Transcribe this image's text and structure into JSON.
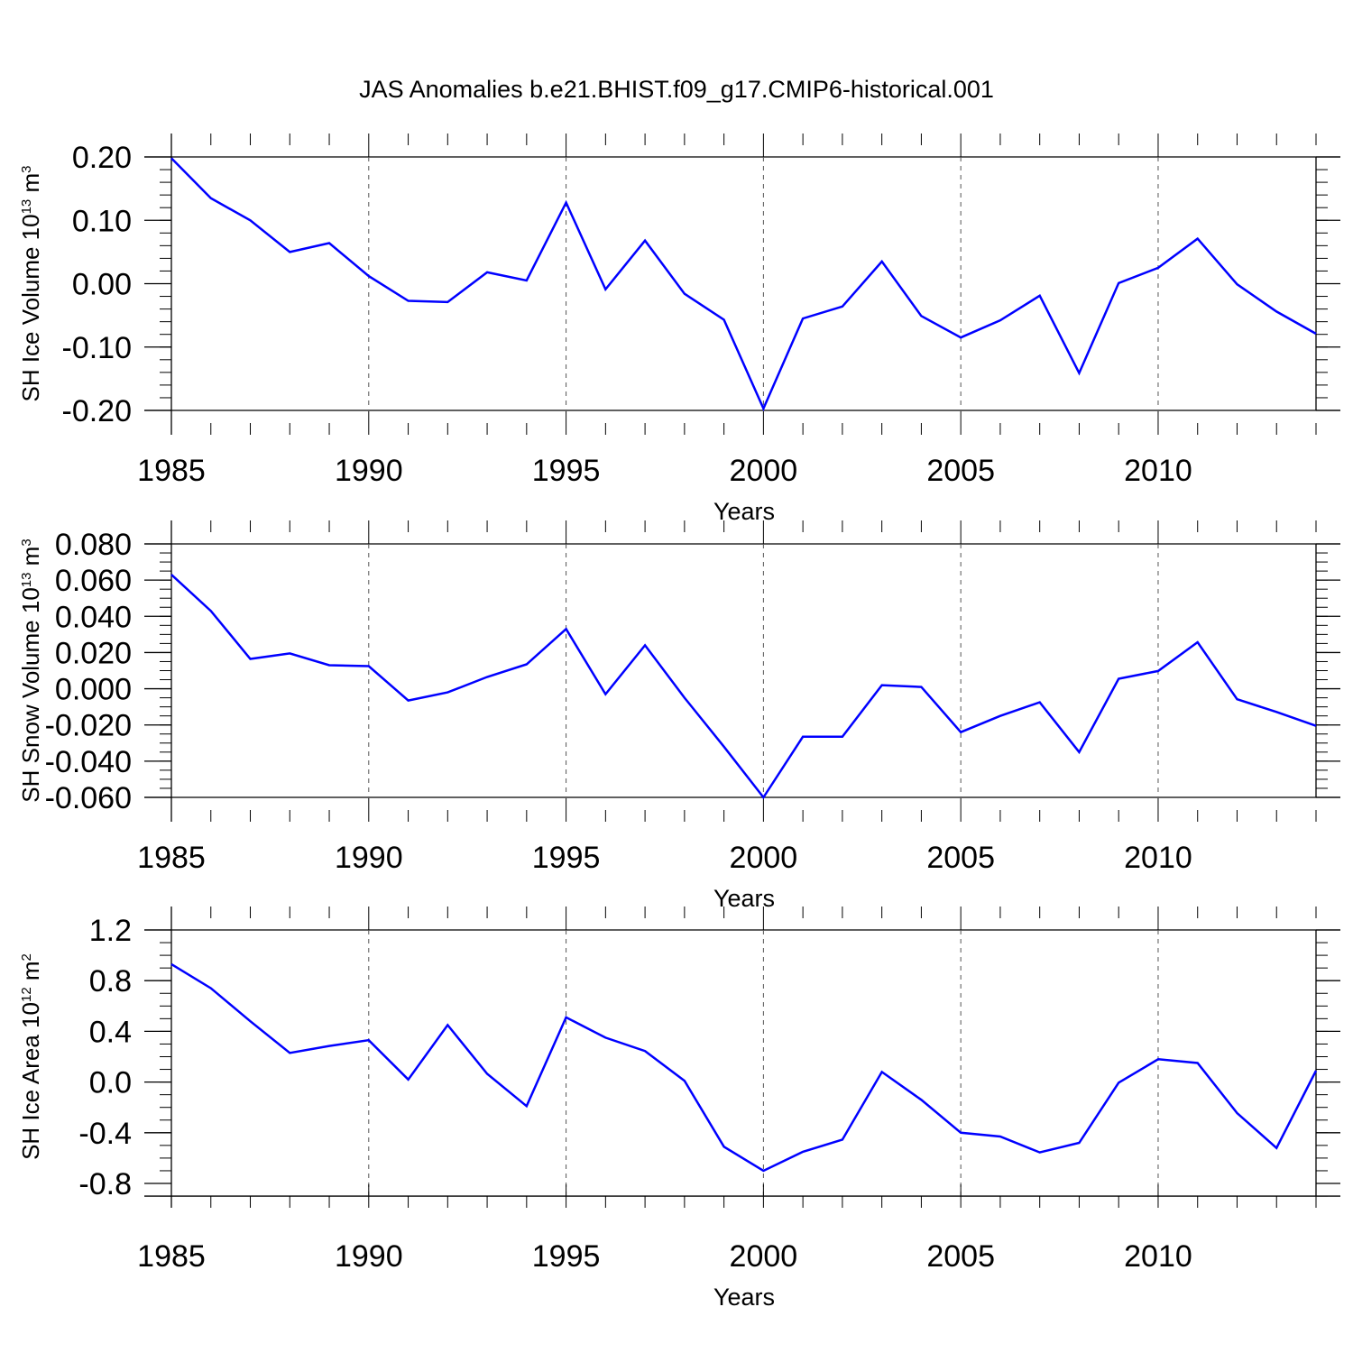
{
  "title": "JAS Anomalies b.e21.BHIST.f09_g17.CMIP6-historical.001",
  "colors": {
    "series": "#0000ff",
    "axis": "#000000",
    "grid": "#555555"
  },
  "chart_data": [
    {
      "type": "line",
      "ylabel": {
        "text": "SH Ice Volume 10",
        "exp": "13",
        "unit": " m",
        "unit_exp": "3"
      },
      "xlabel": "Years",
      "xlim": [
        1985,
        2014
      ],
      "ylim": [
        -0.2,
        0.2
      ],
      "xticks": [
        1985,
        1990,
        1995,
        2000,
        2005,
        2010
      ],
      "yticks": [
        -0.2,
        -0.1,
        0.0,
        0.1,
        0.2
      ],
      "ytick_labels": [
        "-0.20",
        "-0.10",
        "0.00",
        "0.10",
        "0.20"
      ],
      "y_minor_step": 0.02,
      "grid": "vertical dashed at major x ticks",
      "x": [
        1985,
        1986,
        1987,
        1988,
        1989,
        1990,
        1991,
        1992,
        1993,
        1994,
        1995,
        1996,
        1997,
        1998,
        1999,
        2000,
        2001,
        2002,
        2003,
        2004,
        2005,
        2006,
        2007,
        2008,
        2009,
        2010,
        2011,
        2012,
        2013,
        2014
      ],
      "series": [
        {
          "values": [
            0.198,
            0.135,
            0.1,
            0.05,
            0.064,
            0.012,
            -0.027,
            -0.029,
            0.018,
            0.005,
            0.128,
            -0.009,
            0.068,
            -0.016,
            -0.057,
            -0.197,
            -0.055,
            -0.036,
            0.035,
            -0.051,
            -0.085,
            -0.058,
            -0.019,
            -0.141,
            0.001,
            0.025,
            0.071,
            -0.001,
            -0.044,
            -0.079
          ]
        }
      ]
    },
    {
      "type": "line",
      "ylabel": {
        "text": "SH Snow Volume 10",
        "exp": "13",
        "unit": " m",
        "unit_exp": "3"
      },
      "xlabel": "Years",
      "xlim": [
        1985,
        2014
      ],
      "ylim": [
        -0.06,
        0.08
      ],
      "xticks": [
        1985,
        1990,
        1995,
        2000,
        2005,
        2010
      ],
      "yticks": [
        -0.06,
        -0.04,
        -0.02,
        0.0,
        0.02,
        0.04,
        0.06,
        0.08
      ],
      "ytick_labels": [
        "-0.060",
        "-0.040",
        "-0.020",
        "0.000",
        "0.020",
        "0.040",
        "0.060",
        "0.080"
      ],
      "y_minor_step": 0.005,
      "grid": "vertical dashed at major x ticks",
      "x": [
        1985,
        1986,
        1987,
        1988,
        1989,
        1990,
        1991,
        1992,
        1993,
        1994,
        1995,
        1996,
        1997,
        1998,
        1999,
        2000,
        2001,
        2002,
        2003,
        2004,
        2005,
        2006,
        2007,
        2008,
        2009,
        2010,
        2011,
        2012,
        2013,
        2014
      ],
      "series": [
        {
          "values": [
            0.063,
            0.043,
            0.0165,
            0.0195,
            0.013,
            0.0125,
            -0.0065,
            -0.002,
            0.0065,
            0.0135,
            0.033,
            -0.003,
            0.024,
            -0.005,
            -0.032,
            -0.06,
            -0.0265,
            -0.0265,
            0.002,
            0.001,
            -0.024,
            -0.015,
            -0.0075,
            -0.035,
            0.0055,
            0.0098,
            0.0257,
            -0.0058,
            -0.0128,
            -0.0205
          ]
        }
      ]
    },
    {
      "type": "line",
      "ylabel": {
        "text": "SH Ice Area 10",
        "exp": "12",
        "unit": " m",
        "unit_exp": "2"
      },
      "xlabel": "Years",
      "xlim": [
        1985,
        2014
      ],
      "ylim": [
        -0.9,
        1.2
      ],
      "xticks": [
        1985,
        1990,
        1995,
        2000,
        2005,
        2010
      ],
      "yticks": [
        -0.8,
        -0.4,
        0.0,
        0.4,
        0.8,
        1.2
      ],
      "ytick_labels": [
        "-0.8",
        "-0.4",
        "0.0",
        "0.4",
        "0.8",
        "1.2"
      ],
      "y_minor_step": 0.1,
      "grid": "vertical dashed at major x ticks",
      "x": [
        1985,
        1986,
        1987,
        1988,
        1989,
        1990,
        1991,
        1992,
        1993,
        1994,
        1995,
        1996,
        1997,
        1998,
        1999,
        2000,
        2001,
        2002,
        2003,
        2004,
        2005,
        2006,
        2007,
        2008,
        2009,
        2010,
        2011,
        2012,
        2013,
        2014
      ],
      "series": [
        {
          "values": [
            0.93,
            0.74,
            0.48,
            0.23,
            0.285,
            0.33,
            0.02,
            0.45,
            0.065,
            -0.19,
            0.51,
            0.35,
            0.245,
            0.01,
            -0.51,
            -0.7,
            -0.55,
            -0.455,
            0.08,
            -0.14,
            -0.4,
            -0.43,
            -0.555,
            -0.48,
            -0.005,
            0.18,
            0.15,
            -0.245,
            -0.52,
            0.09
          ]
        }
      ]
    }
  ]
}
